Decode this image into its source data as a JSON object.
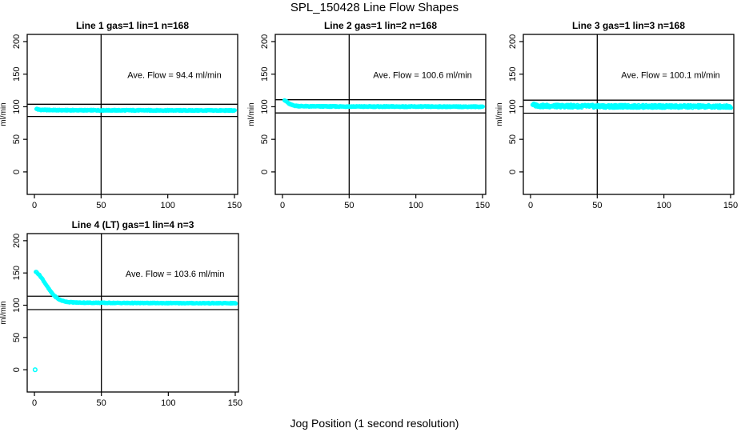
{
  "figure": {
    "title": "SPL_150428  Line Flow Shapes",
    "xlabel": "Jog Position (1 second resolution)",
    "background": "#FFFFFF",
    "axis_color": "#000000",
    "point_color": "#00FFFF"
  },
  "chart_data": [
    {
      "type": "scatter",
      "title": "Line 1 gas=1 lin=1 n=168",
      "annotation": "Ave. Flow =  94.4  ml/min",
      "ave_flow_ml_min": 94.4,
      "ylabel": "ml/min",
      "x_ticks": [
        0,
        50,
        100,
        150
      ],
      "y_ticks": [
        0,
        50,
        100,
        150,
        200
      ],
      "xlim": [
        -5.4,
        152.4
      ],
      "ylim": [
        -34.5,
        211
      ],
      "crosshair_x": 50,
      "ref_lines": [
        103.8,
        85.0
      ],
      "series": {
        "x_start": 1.5,
        "x_end": 150.5,
        "step": 0.35,
        "jitter": 0.7,
        "control_points": [
          [
            1.5,
            97
          ],
          [
            2.5,
            95.8
          ],
          [
            5,
            95.2
          ],
          [
            20,
            94.7
          ],
          [
            80,
            94.5
          ],
          [
            150.5,
            94.3
          ]
        ]
      },
      "outliers": []
    },
    {
      "type": "scatter",
      "title": "Line 2 gas=1 lin=2 n=168",
      "annotation": "Ave. Flow =  100.6  ml/min",
      "ave_flow_ml_min": 100.6,
      "ylabel": "ml/min",
      "x_ticks": [
        0,
        50,
        100,
        150
      ],
      "y_ticks": [
        0,
        50,
        100,
        150,
        200
      ],
      "xlim": [
        -5.4,
        152.4
      ],
      "ylim": [
        -34.5,
        211
      ],
      "crosshair_x": 50,
      "ref_lines": [
        110.7,
        90.5
      ],
      "series": {
        "x_start": 1.5,
        "x_end": 150.5,
        "step": 0.35,
        "jitter": 0.7,
        "control_points": [
          [
            1.5,
            110.5
          ],
          [
            3,
            108
          ],
          [
            5,
            104.5
          ],
          [
            8,
            102
          ],
          [
            12,
            101
          ],
          [
            20,
            100.6
          ],
          [
            60,
            100.3
          ],
          [
            150.5,
            100.1
          ]
        ]
      },
      "outliers": []
    },
    {
      "type": "scatter",
      "title": "Line 3 gas=1 lin=3 n=168",
      "annotation": "Ave. Flow =  100.1  ml/min",
      "ave_flow_ml_min": 100.1,
      "ylabel": "ml/min",
      "x_ticks": [
        0,
        50,
        100,
        150
      ],
      "y_ticks": [
        0,
        50,
        100,
        150,
        200
      ],
      "xlim": [
        -5.4,
        152.4
      ],
      "ylim": [
        -34.5,
        211
      ],
      "crosshair_x": 50,
      "ref_lines": [
        110.1,
        90.1
      ],
      "series": {
        "x_start": 1.5,
        "x_end": 150.5,
        "step": 0.3,
        "jitter": 2.2,
        "control_points": [
          [
            1.5,
            104
          ],
          [
            3,
            102.5
          ],
          [
            8,
            101.2
          ],
          [
            60,
            100.6
          ],
          [
            150.5,
            100.3
          ]
        ]
      },
      "outliers": []
    },
    {
      "type": "scatter",
      "title": "Line 4 (LT) gas=1 lin=4 n=3",
      "annotation": "Ave. Flow =  103.6  ml/min",
      "ave_flow_ml_min": 103.6,
      "ylabel": "ml/min",
      "x_ticks": [
        0,
        50,
        100,
        150
      ],
      "y_ticks": [
        0,
        50,
        100,
        150,
        200
      ],
      "xlim": [
        -5.4,
        152.4
      ],
      "ylim": [
        -34.5,
        211
      ],
      "crosshair_x": 50,
      "ref_lines": [
        114.0,
        93.2
      ],
      "series": {
        "x_start": 1,
        "x_end": 150.5,
        "step": 0.45,
        "jitter": 0.6,
        "control_points": [
          [
            1,
            152
          ],
          [
            2,
            150.5
          ],
          [
            4,
            146
          ],
          [
            6,
            140.5
          ],
          [
            8,
            134
          ],
          [
            10,
            127.5
          ],
          [
            12,
            121.5
          ],
          [
            14,
            116.5
          ],
          [
            16,
            112.5
          ],
          [
            18,
            109.5
          ],
          [
            20,
            107.5
          ],
          [
            23,
            105.8
          ],
          [
            26,
            104.8
          ],
          [
            30,
            104.3
          ],
          [
            40,
            103.9
          ],
          [
            60,
            103.6
          ],
          [
            100,
            103.3
          ],
          [
            150.5,
            103.1
          ]
        ]
      },
      "outliers": [
        [
          0.5,
          0
        ]
      ]
    }
  ]
}
